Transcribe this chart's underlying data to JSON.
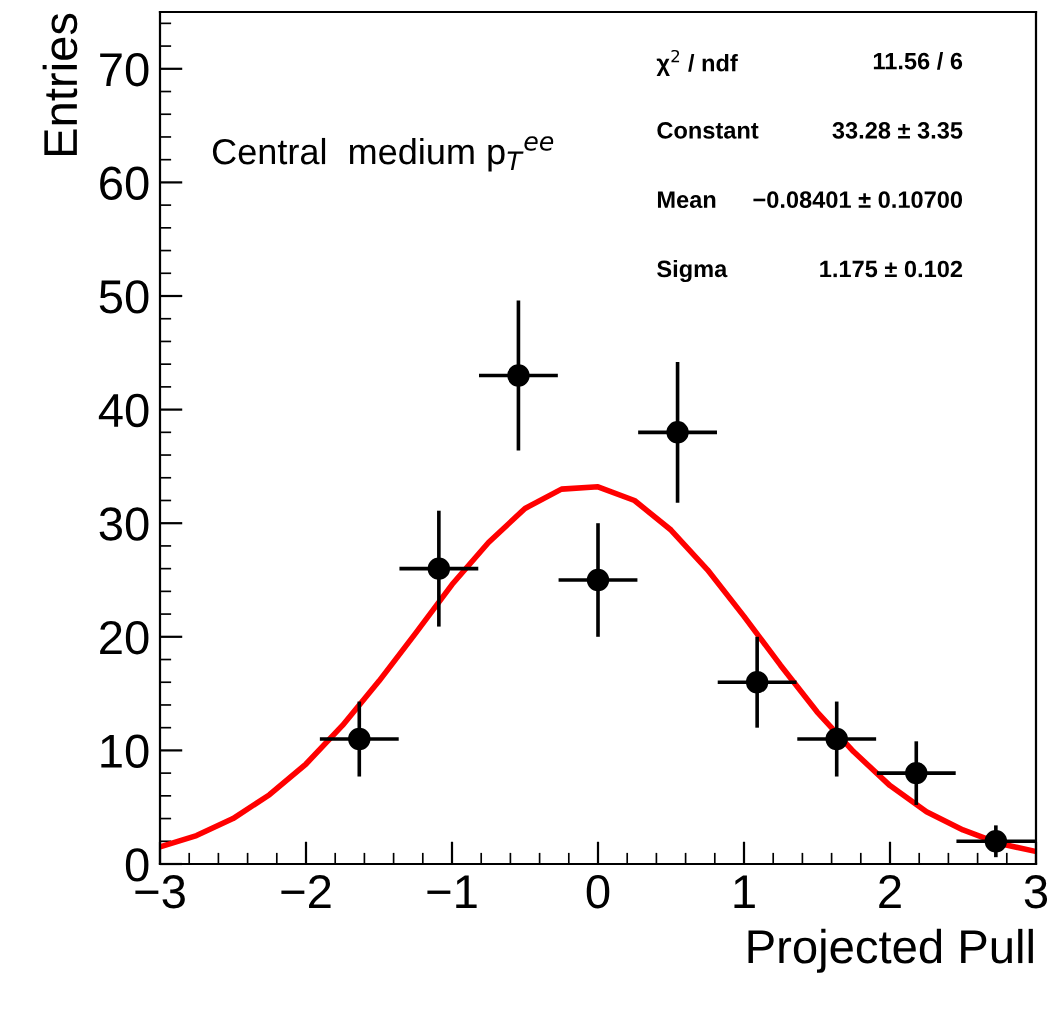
{
  "chart_data": {
    "type": "scatter",
    "xlabel": "Projected Pull",
    "ylabel": "Entries",
    "xlim": [
      -3,
      3
    ],
    "ylim": [
      0,
      75
    ],
    "xticks": [
      {
        "value": -3,
        "label": "−3"
      },
      {
        "value": -2,
        "label": "−2"
      },
      {
        "value": -1,
        "label": "−1"
      },
      0,
      1,
      2,
      3
    ],
    "yticks": [
      0,
      10,
      20,
      30,
      40,
      50,
      60,
      70
    ],
    "grid": false,
    "legend": false,
    "marker": "circle",
    "annotations": [
      {
        "text": "Central  medium p$_{T}$$^{ee}$"
      },
      {
        "text": "χ$^{2}$ / ndf"
      },
      {
        "text": "11.56 / 6"
      },
      {
        "text": "Constant"
      },
      {
        "text": "33.28 ± 3.35"
      },
      {
        "text": "Mean"
      },
      {
        "text": "−0.08401 ± 0.10700"
      },
      {
        "text": "Sigma"
      },
      {
        "text": "1.175 ± 0.102"
      }
    ],
    "series": [
      {
        "color": "#000000",
        "x": [
          -1.635,
          -1.09,
          -0.545,
          0,
          0.545,
          1.09,
          1.635,
          2.18,
          2.725
        ],
        "values": [
          11,
          26,
          43,
          25,
          38,
          16,
          11,
          8,
          2
        ],
        "errors": [
          3.3,
          5.1,
          6.6,
          5,
          6.2,
          4,
          3.3,
          2.8,
          1.4
        ],
        "xerrors": [
          0.27,
          0.27,
          0.27,
          0.27,
          0.27,
          0.27,
          0.27,
          0.27,
          0.27
        ]
      },
      {
        "type": "line",
        "color": "#ff0000",
        "marker": "none",
        "line_style": "solid",
        "x": [
          -3,
          -2.75,
          -2.5,
          -2.25,
          -2,
          -1.75,
          -1.5,
          -1.25,
          -1,
          -0.75,
          -0.5,
          -0.25,
          0,
          0.25,
          0.5,
          0.75,
          1,
          1.25,
          1.5,
          1.75,
          2,
          2.25,
          2.5,
          2.75,
          3
        ],
        "values": [
          1.5,
          2.5,
          4.0,
          6.1,
          8.8,
          12.2,
          16.1,
          20.3,
          24.6,
          28.3,
          31.3,
          33.0,
          33.2,
          32.0,
          29.4,
          25.9,
          21.8,
          17.5,
          13.4,
          9.9,
          6.9,
          4.6,
          3.0,
          1.8,
          1.1
        ]
      }
    ]
  }
}
